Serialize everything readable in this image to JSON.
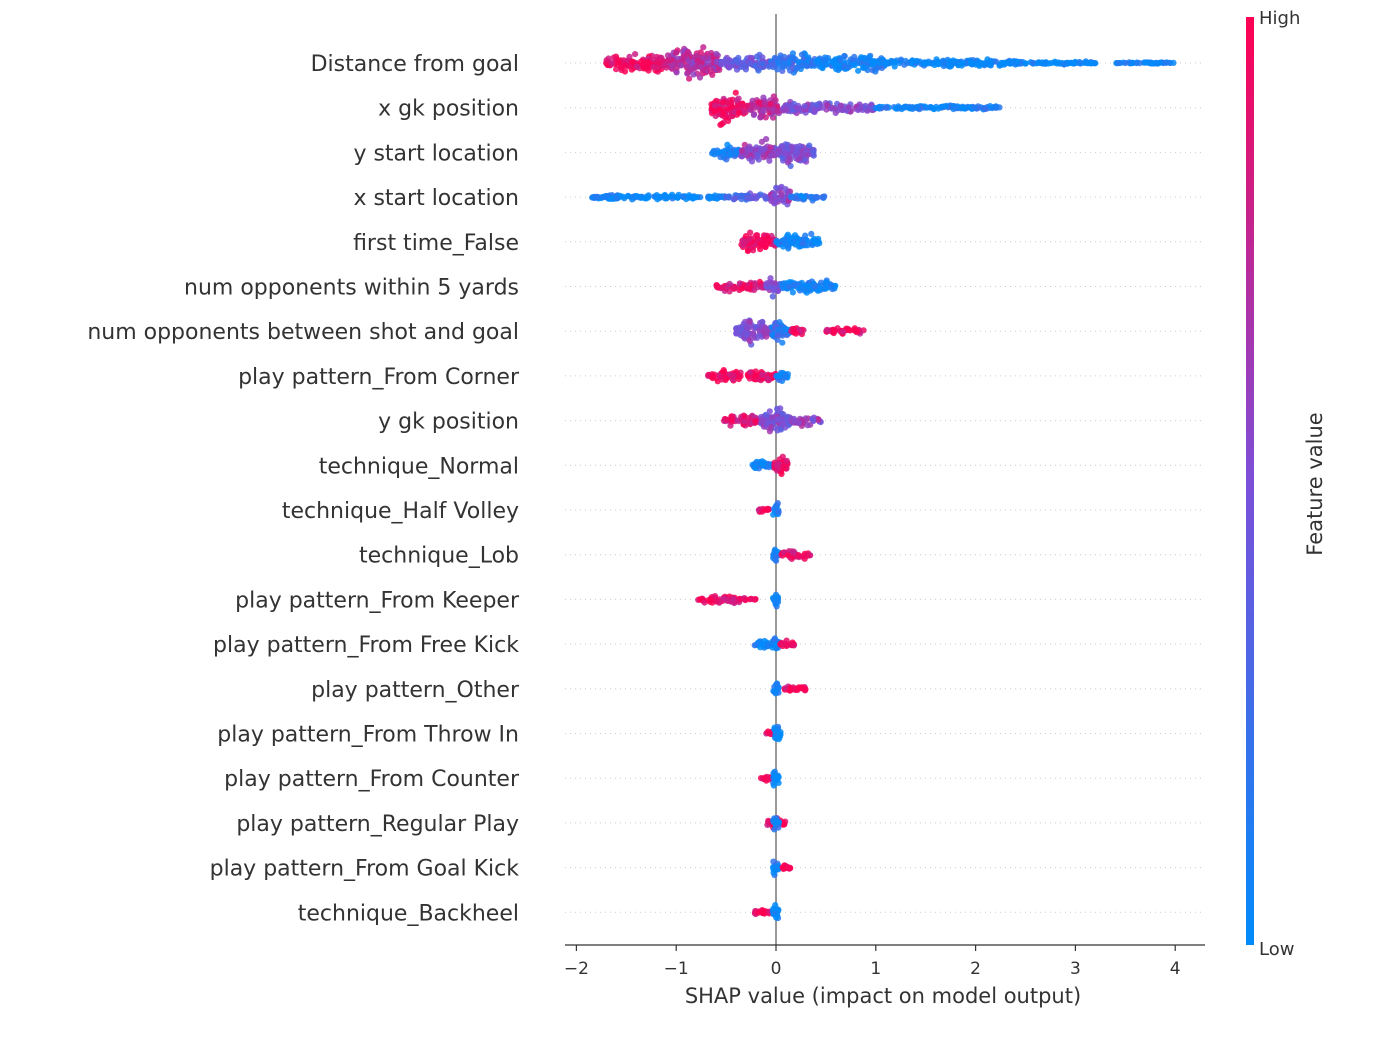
{
  "chart_data": {
    "type": "scatter",
    "subtype": "shap-summary-beeswarm",
    "title": "",
    "xlabel": "SHAP value (impact on model output)",
    "ylabel": "",
    "xlim": [
      -2.1,
      4.3
    ],
    "xticks": [
      -2,
      -1,
      0,
      1,
      2,
      3,
      4
    ],
    "xtick_labels": [
      "−2",
      "−1",
      "0",
      "1",
      "2",
      "3",
      "4"
    ],
    "zero_line": true,
    "grid": false,
    "colorbar": {
      "title": "Feature value",
      "high_label": "High",
      "low_label": "Low",
      "high_color": "#ff0052",
      "low_color": "#008bfb"
    },
    "features": [
      {
        "name": "Distance from goal",
        "segments": [
          [
            -1.7,
            -1.1,
            0.95,
            0.6
          ],
          [
            -1.1,
            -0.55,
            0.7,
            1.0
          ],
          [
            -0.55,
            -0.05,
            0.4,
            0.55
          ],
          [
            -0.05,
            0.4,
            0.2,
            0.7
          ],
          [
            0.4,
            1.1,
            0.05,
            0.6
          ],
          [
            1.1,
            2.5,
            0.0,
            0.25
          ],
          [
            2.5,
            3.2,
            0.0,
            0.1
          ],
          [
            3.4,
            4.0,
            0.0,
            0.05
          ]
        ]
      },
      {
        "name": "x gk position",
        "segments": [
          [
            -0.65,
            -0.3,
            0.95,
            1.0
          ],
          [
            -0.3,
            0.05,
            0.75,
            0.8
          ],
          [
            0.05,
            1.0,
            0.5,
            0.35
          ],
          [
            1.0,
            2.25,
            0.1,
            0.15
          ]
        ]
      },
      {
        "name": "y start location",
        "segments": [
          [
            -0.65,
            -0.35,
            0.15,
            0.5
          ],
          [
            -0.35,
            0.0,
            0.6,
            0.8
          ],
          [
            0.0,
            0.38,
            0.45,
            0.9
          ]
        ]
      },
      {
        "name": "x start location",
        "segments": [
          [
            -1.85,
            -0.5,
            0.05,
            0.15
          ],
          [
            -0.5,
            -0.05,
            0.35,
            0.25
          ],
          [
            -0.05,
            0.15,
            0.55,
            0.9
          ],
          [
            0.15,
            0.5,
            0.1,
            0.2
          ]
        ]
      },
      {
        "name": "first time_False",
        "segments": [
          [
            -0.35,
            0.0,
            0.95,
            0.7
          ],
          [
            0.0,
            0.45,
            0.05,
            0.45
          ]
        ]
      },
      {
        "name": "num opponents within 5 yards",
        "segments": [
          [
            -0.6,
            -0.1,
            0.9,
            0.35
          ],
          [
            -0.1,
            0.05,
            0.5,
            0.8
          ],
          [
            0.05,
            0.6,
            0.05,
            0.45
          ]
        ]
      },
      {
        "name": "num opponents between shot and goal",
        "segments": [
          [
            -0.4,
            -0.05,
            0.55,
            0.85
          ],
          [
            -0.05,
            0.15,
            0.2,
            0.9
          ],
          [
            0.15,
            0.28,
            0.95,
            0.4
          ],
          [
            0.5,
            0.88,
            0.95,
            0.25
          ]
        ]
      },
      {
        "name": "play pattern_From Corner",
        "segments": [
          [
            -0.68,
            0.0,
            0.95,
            0.4
          ],
          [
            0.0,
            0.12,
            0.05,
            0.6
          ]
        ]
      },
      {
        "name": "y gk position",
        "segments": [
          [
            -0.52,
            -0.15,
            0.9,
            0.45
          ],
          [
            -0.15,
            0.15,
            0.5,
            0.9
          ],
          [
            0.15,
            0.45,
            0.6,
            0.35
          ]
        ]
      },
      {
        "name": "technique_Normal",
        "segments": [
          [
            -0.25,
            -0.02,
            0.05,
            0.35
          ],
          [
            -0.02,
            0.12,
            0.95,
            0.9
          ]
        ]
      },
      {
        "name": "technique_Half Volley",
        "segments": [
          [
            -0.18,
            -0.05,
            0.95,
            0.25
          ],
          [
            -0.03,
            0.03,
            0.05,
            1.0
          ]
        ]
      },
      {
        "name": "technique_Lob",
        "segments": [
          [
            -0.03,
            0.03,
            0.05,
            1.0
          ],
          [
            0.05,
            0.35,
            0.95,
            0.35
          ]
        ]
      },
      {
        "name": "play pattern_From Keeper",
        "segments": [
          [
            -0.78,
            -0.3,
            0.95,
            0.3
          ],
          [
            -0.27,
            -0.2,
            0.95,
            0.1
          ],
          [
            -0.03,
            0.03,
            0.05,
            1.0
          ]
        ]
      },
      {
        "name": "play pattern_From Free Kick",
        "segments": [
          [
            -0.22,
            0.0,
            0.05,
            0.35
          ],
          [
            -0.03,
            0.03,
            0.05,
            1.0
          ],
          [
            0.03,
            0.18,
            0.95,
            0.35
          ]
        ]
      },
      {
        "name": "play pattern_Other",
        "segments": [
          [
            -0.03,
            0.03,
            0.05,
            1.0
          ],
          [
            0.08,
            0.3,
            0.95,
            0.35
          ]
        ]
      },
      {
        "name": "play pattern_From Throw In",
        "segments": [
          [
            -0.1,
            -0.02,
            0.95,
            0.25
          ],
          [
            -0.03,
            0.05,
            0.05,
            1.0
          ]
        ]
      },
      {
        "name": "play pattern_From Counter",
        "segments": [
          [
            -0.16,
            -0.04,
            0.95,
            0.25
          ],
          [
            -0.03,
            0.03,
            0.05,
            1.0
          ]
        ]
      },
      {
        "name": "play pattern_Regular Play",
        "segments": [
          [
            -0.1,
            0.1,
            0.95,
            0.35
          ],
          [
            -0.03,
            0.03,
            0.05,
            1.0
          ]
        ]
      },
      {
        "name": "play pattern_From Goal Kick",
        "segments": [
          [
            -0.03,
            0.03,
            0.05,
            1.0
          ],
          [
            0.03,
            0.15,
            0.95,
            0.25
          ]
        ]
      },
      {
        "name": "technique_Backheel",
        "segments": [
          [
            -0.22,
            -0.06,
            0.95,
            0.25
          ],
          [
            -0.03,
            0.03,
            0.05,
            1.0
          ]
        ]
      }
    ]
  }
}
